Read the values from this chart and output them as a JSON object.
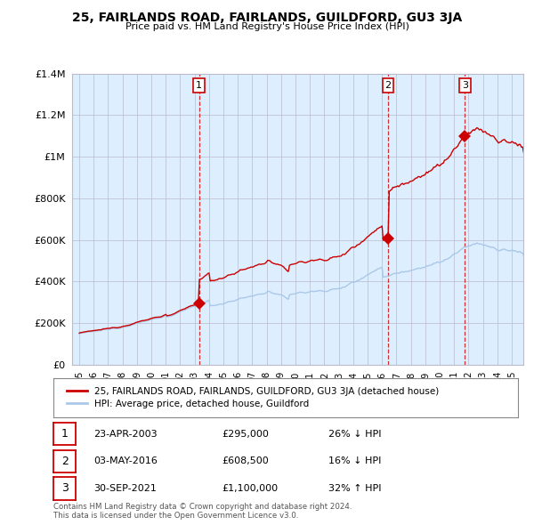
{
  "title": "25, FAIRLANDS ROAD, FAIRLANDS, GUILDFORD, GU3 3JA",
  "subtitle": "Price paid vs. HM Land Registry's House Price Index (HPI)",
  "sale_dates": [
    2003.31,
    2016.42,
    2021.75
  ],
  "sale_prices": [
    295000,
    608500,
    1100000
  ],
  "sale_labels": [
    "1",
    "2",
    "3"
  ],
  "legend_line1": "25, FAIRLANDS ROAD, FAIRLANDS, GUILDFORD, GU3 3JA (detached house)",
  "legend_line2": "HPI: Average price, detached house, Guildford",
  "table_rows": [
    {
      "num": "1",
      "date": "23-APR-2003",
      "price": "£295,000",
      "pct": "26% ↓ HPI"
    },
    {
      "num": "2",
      "date": "03-MAY-2016",
      "price": "£608,500",
      "pct": "16% ↓ HPI"
    },
    {
      "num": "3",
      "date": "30-SEP-2021",
      "price": "£1,100,000",
      "pct": "32% ↑ HPI"
    }
  ],
  "footer": "Contains HM Land Registry data © Crown copyright and database right 2024.\nThis data is licensed under the Open Government Licence v3.0.",
  "hpi_color": "#aac8e8",
  "price_color": "#cc0000",
  "vline_color": "#cc0000",
  "chart_bg": "#ddeeff",
  "background_color": "#ffffff",
  "grid_color": "#bbbbcc",
  "ylim": [
    0,
    1400000
  ],
  "xlim": [
    1994.5,
    2025.8
  ]
}
